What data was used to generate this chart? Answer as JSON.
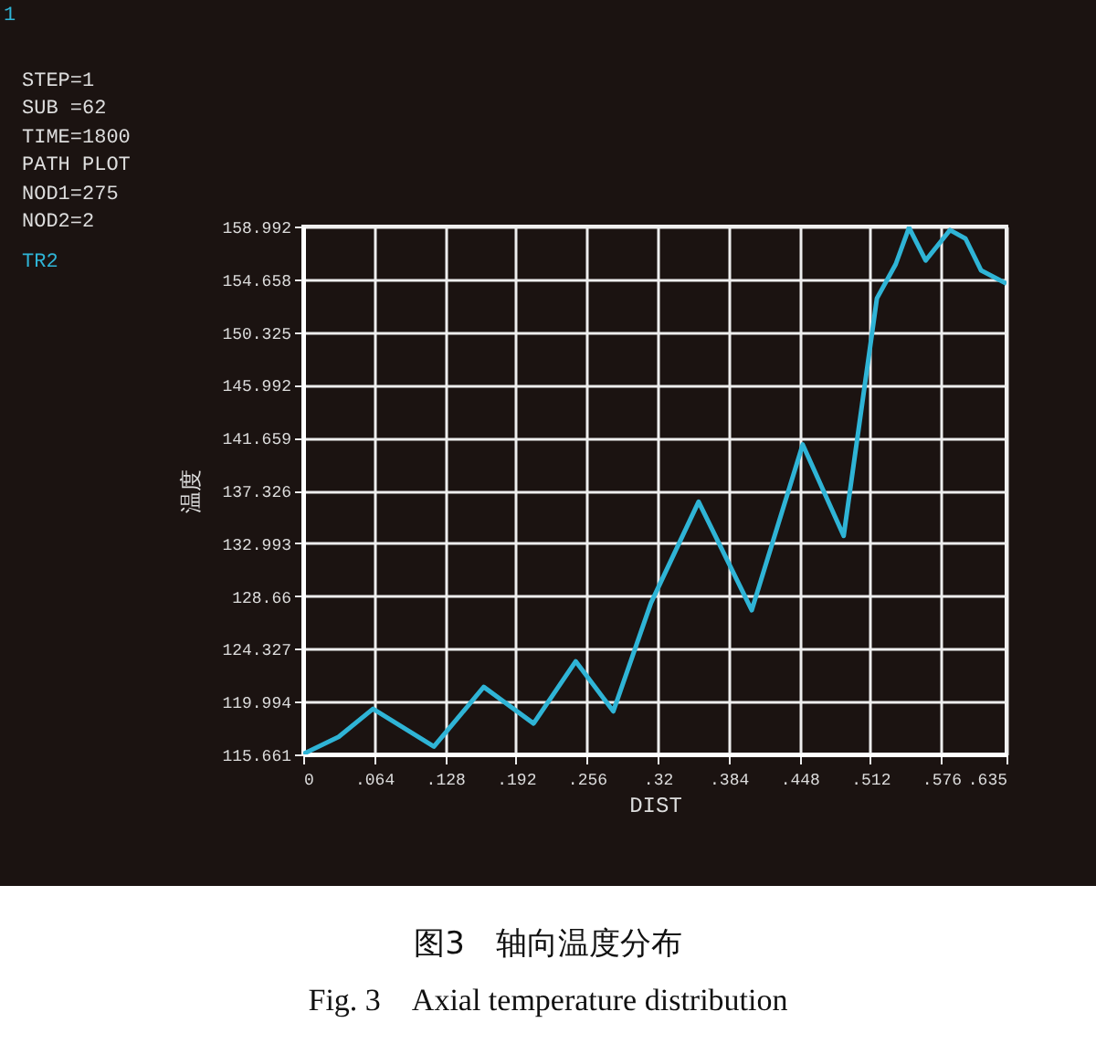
{
  "chart_data": {
    "type": "line",
    "title": "图3　轴向温度分布",
    "subtitle": "Fig. 3　Axial temperature distribution",
    "xlabel": "DIST",
    "ylabel": "温度",
    "annotations": [
      "1",
      "STEP=1",
      "SUB =62",
      "TIME=1800",
      "PATH PLOT",
      "NOD1=275",
      "NOD2=2"
    ],
    "legend": "left",
    "grid": true,
    "marker": "none",
    "line_style": "solid",
    "xlim": [
      0,
      0.635
    ],
    "xticks": [
      0,
      {
        "value": 0.064,
        "label": ".064"
      },
      {
        "value": 0.128,
        "label": ".128"
      },
      {
        "value": 0.192,
        "label": ".192"
      },
      {
        "value": 0.256,
        "label": ".256"
      },
      {
        "value": 0.32,
        "label": ".32"
      },
      {
        "value": 0.384,
        "label": ".384"
      },
      {
        "value": 0.448,
        "label": ".448"
      },
      {
        "value": 0.512,
        "label": ".512"
      },
      {
        "value": 0.576,
        "label": ".576"
      },
      {
        "value": 0.635,
        "label": ".635"
      }
    ],
    "ylim": [
      115.661,
      158.992
    ],
    "yticks": [
      115.661,
      119.994,
      124.327,
      128.66,
      132.993,
      137.326,
      141.659,
      145.992,
      150.325,
      154.658,
      158.992
    ],
    "series": [
      {
        "name": "TR2",
        "color": "#2fb4d6",
        "x": [
          0,
          0.032,
          0.063,
          0.118,
          0.163,
          0.208,
          0.246,
          0.28,
          0.314,
          0.357,
          0.405,
          0.451,
          0.488,
          0.518,
          0.535,
          0.547,
          0.562,
          0.584,
          0.598,
          0.612,
          0.635
        ],
        "values": [
          115.7,
          117.1,
          119.4,
          116.3,
          121.2,
          118.2,
          123.3,
          119.2,
          128.1,
          136.4,
          127.5,
          141.1,
          133.6,
          153.1,
          155.9,
          158.9,
          156.2,
          158.7,
          158.0,
          155.4,
          154.3
        ]
      }
    ]
  }
}
